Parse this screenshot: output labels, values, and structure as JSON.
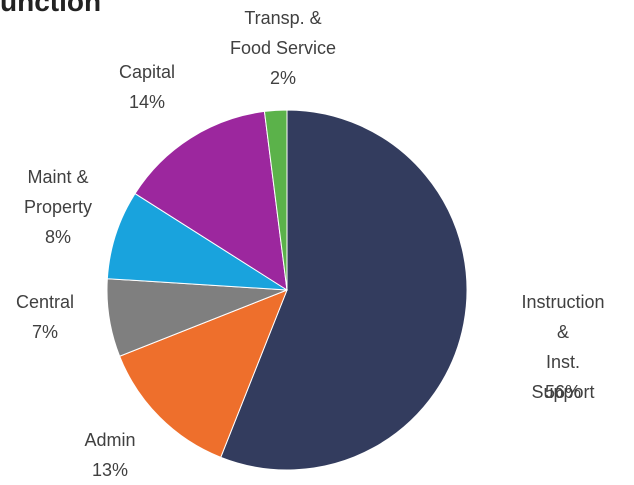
{
  "chart_data": {
    "type": "pie",
    "title": "unction",
    "categories": [
      "Instruction &\nInst. Support",
      "Admin",
      "Central",
      "Maint &\nProperty",
      "Capital",
      "Transp. &\nFood Service"
    ],
    "values": [
      56,
      13,
      7,
      8,
      14,
      2
    ],
    "value_labels": [
      "56%",
      "13%",
      "7%",
      "8%",
      "14%",
      "2%"
    ],
    "colors": [
      "#333c5e",
      "#ee6f2c",
      "#7f7f7f",
      "#19a3dd",
      "#9c279e",
      "#5bb24a"
    ]
  }
}
